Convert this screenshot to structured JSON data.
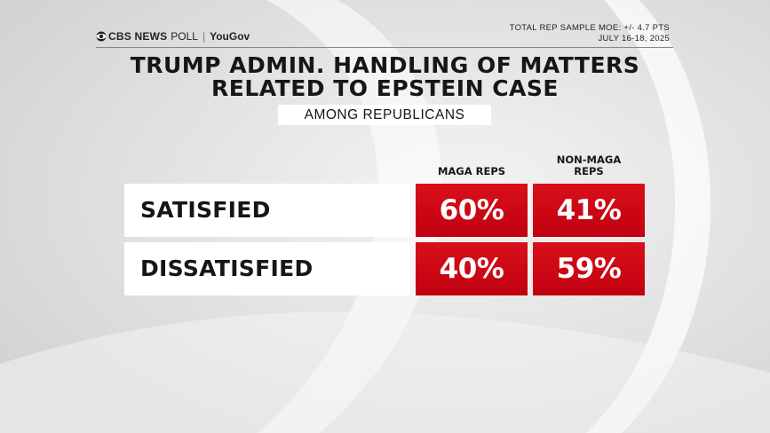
{
  "header": {
    "brand_cbs": "CBS NEWS",
    "brand_poll": "POLL",
    "brand_separator": "|",
    "brand_partner": "YouGov",
    "moe": "TOTAL REP SAMPLE MOE: +/- 4.7 PTS",
    "dates": "JULY 16-18, 2025"
  },
  "title_line1": "TRUMP ADMIN. HANDLING OF MATTERS",
  "title_line2": "RELATED TO EPSTEIN CASE",
  "subtitle": "AMONG REPUBLICANS",
  "columns": [
    "MAGA REPS",
    "NON-MAGA REPS"
  ],
  "column_label_lines": {
    "maga": "MAGA REPS",
    "nonmaga_line1": "NON-MAGA",
    "nonmaga_line2": "REPS"
  },
  "rows": [
    {
      "label": "SATISFIED",
      "maga": "60%",
      "nonmaga": "41%"
    },
    {
      "label": "DISSATISFIED",
      "maga": "40%",
      "nonmaga": "59%"
    }
  ],
  "colors": {
    "cell_red": "#cc0a15",
    "label_bg": "#ffffff",
    "background": "#e7e7e7"
  },
  "chart_data": {
    "type": "table",
    "title": "TRUMP ADMIN. HANDLING OF MATTERS RELATED TO EPSTEIN CASE",
    "subtitle": "AMONG REPUBLICANS",
    "columns": [
      "MAGA REPS",
      "NON-MAGA REPS"
    ],
    "categories": [
      "SATISFIED",
      "DISSATISFIED"
    ],
    "series": [
      {
        "name": "MAGA REPS",
        "values": [
          60,
          40
        ]
      },
      {
        "name": "NON-MAGA REPS",
        "values": [
          41,
          59
        ]
      }
    ]
  }
}
